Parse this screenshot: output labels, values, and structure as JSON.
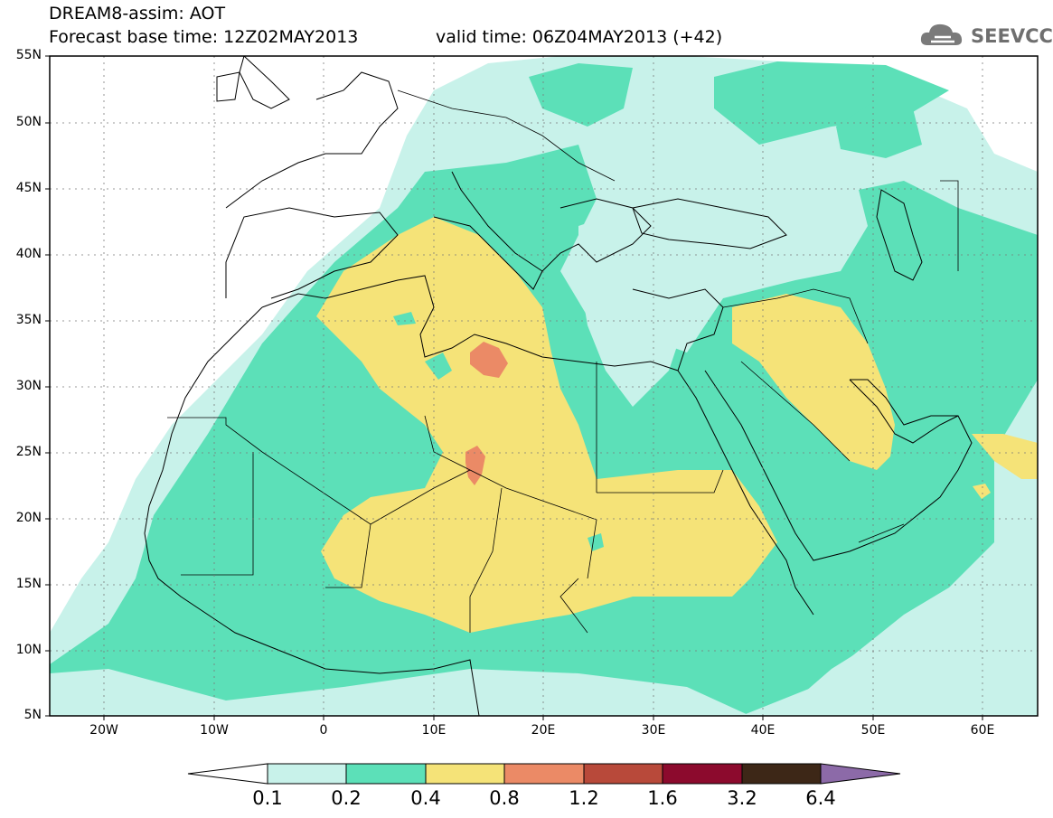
{
  "header": {
    "line1": "DREAM8-assim: AOT",
    "line2": "Forecast base time: 12Z02MAY2013",
    "valid": "valid time: 06Z04MAY2013 (+42)",
    "logo_text": "SEEVCCC"
  },
  "axes": {
    "lat_labels": [
      "55N",
      "50N",
      "45N",
      "40N",
      "35N",
      "30N",
      "25N",
      "20N",
      "15N",
      "10N",
      "5N"
    ],
    "lon_labels": [
      "20W",
      "10W",
      "0",
      "10E",
      "20E",
      "30E",
      "40E",
      "50E",
      "60E"
    ]
  },
  "colorbar": {
    "labels": [
      "0.1",
      "0.2",
      "0.4",
      "0.8",
      "1.2",
      "1.6",
      "3.2",
      "6.4"
    ],
    "colors": [
      "#c8f2ea",
      "#5ce0b8",
      "#f5e378",
      "#eb8a66",
      "#b8493a",
      "#8c0a2d",
      "#3d2717",
      "#8c6aa8"
    ]
  },
  "palette": {
    "c01": "#c8f2ea",
    "c02": "#5ce0b8",
    "c04": "#f5e378",
    "c08": "#eb8a66"
  }
}
